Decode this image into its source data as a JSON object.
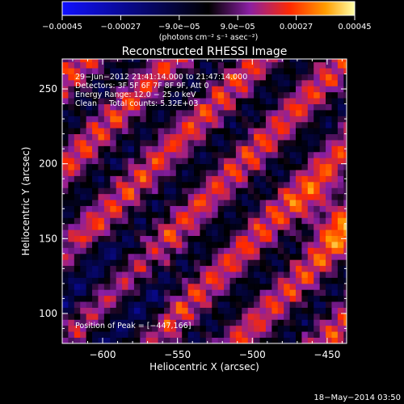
{
  "colorbar": {
    "ticks": [
      {
        "value": -0.00045,
        "label": "−0.00045"
      },
      {
        "value": -0.00027,
        "label": "−0.00027"
      },
      {
        "value": -9e-05,
        "label": "−9.0e−05"
      },
      {
        "value": 9e-05,
        "label": "9.0e−05"
      },
      {
        "value": 0.00027,
        "label": "0.00027"
      },
      {
        "value": 0.00045,
        "label": "0.00045"
      }
    ],
    "range": [
      -0.00045,
      0.00045
    ],
    "units": "(photons cm⁻² s⁻¹ asec⁻²)",
    "colors": [
      "#1010ff",
      "#000000",
      "#8a1fa3",
      "#ff2a00",
      "#ff9c00",
      "#ffffa8"
    ]
  },
  "chart_data": {
    "type": "heatmap",
    "title": "Reconstructed RHESSI Image",
    "xlabel": "Heliocentric X (arcsec)",
    "ylabel": "Heliocentric Y (arcsec)",
    "xlim": [
      -627,
      -437
    ],
    "ylim": [
      80,
      270
    ],
    "xticks": [
      {
        "value": -600,
        "label": "−600"
      },
      {
        "value": -550,
        "label": "−550"
      },
      {
        "value": -500,
        "label": "−500"
      },
      {
        "value": -450,
        "label": "−450"
      }
    ],
    "yticks": [
      {
        "value": 100,
        "label": "100"
      },
      {
        "value": 150,
        "label": "150"
      },
      {
        "value": 200,
        "label": "200"
      },
      {
        "value": 250,
        "label": "250"
      }
    ],
    "pixel_size_arcsec": 4,
    "peak": {
      "x": -447,
      "y": 166
    },
    "annotations": [
      "29−Jun−2012 21:41:14.000 to 21:47:14.000",
      "Detectors: 3F 5F 6F 7F 8F 9F, Att 0",
      "Energy Range: 12.0 − 25.0 keV",
      "Clean     Total counts: 5.32E+03"
    ],
    "peak_label": "Position of Peak = [−447,166]"
  },
  "footer": {
    "timestamp": "18−May−2014 03:50"
  }
}
